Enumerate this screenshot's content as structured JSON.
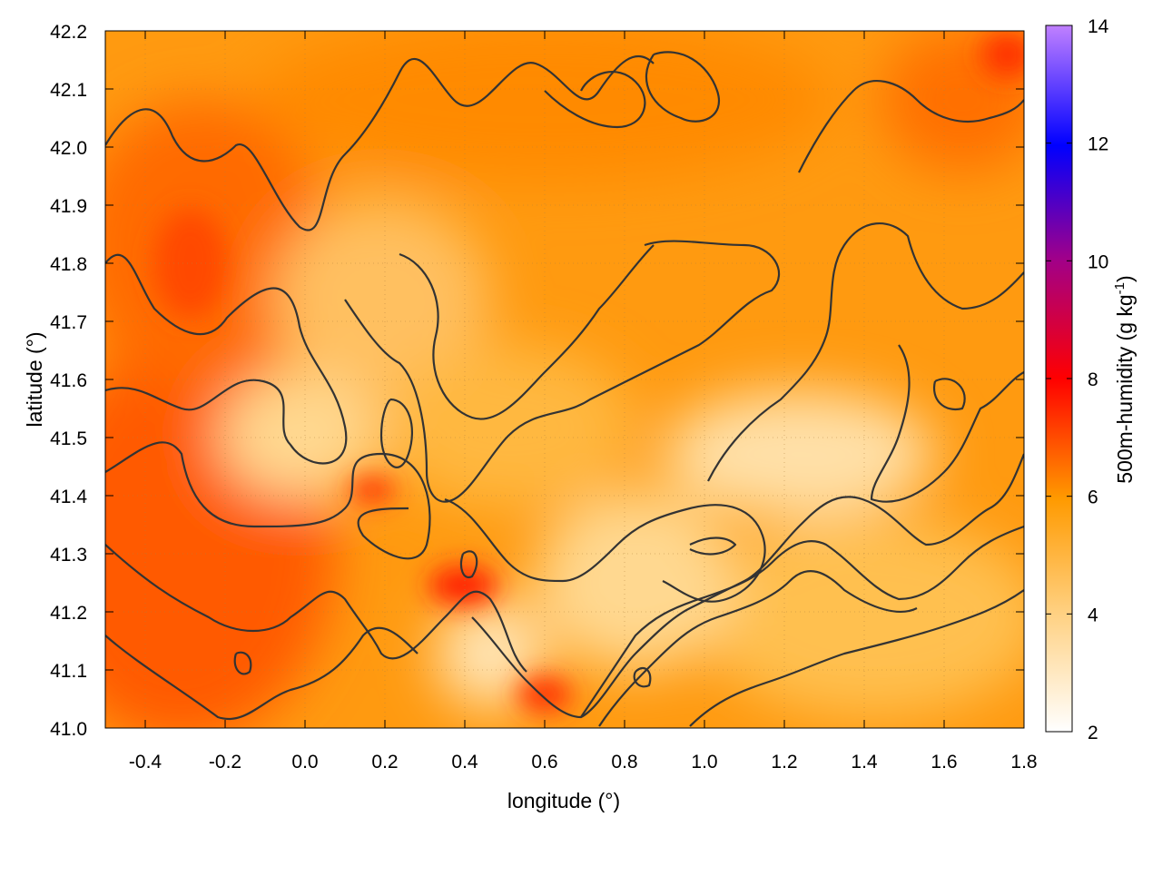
{
  "chart_data": {
    "type": "heatmap",
    "title": "",
    "xlabel": "longitude (°)",
    "ylabel": "latitude (°)",
    "colorbar_label": "500m-humidity (g kg",
    "colorbar_label_sup": "-1",
    "colorbar_label_end": ")",
    "xlim": [
      -0.5,
      1.8
    ],
    "ylim": [
      41.0,
      42.2
    ],
    "x_ticks": [
      "-0.4",
      "-0.2",
      "0.0",
      "0.2",
      "0.4",
      "0.6",
      "0.8",
      "1.0",
      "1.2",
      "1.4",
      "1.6",
      "1.8"
    ],
    "x_tick_values": [
      -0.4,
      -0.2,
      0.0,
      0.2,
      0.4,
      0.6,
      0.8,
      1.0,
      1.2,
      1.4,
      1.6,
      1.8
    ],
    "y_ticks": [
      "41.0",
      "41.1",
      "41.2",
      "41.3",
      "41.4",
      "41.5",
      "41.6",
      "41.7",
      "41.8",
      "41.9",
      "42.0",
      "42.1",
      "42.2"
    ],
    "y_tick_values": [
      41.0,
      41.1,
      41.2,
      41.3,
      41.4,
      41.5,
      41.6,
      41.7,
      41.8,
      41.9,
      42.0,
      42.1,
      42.2
    ],
    "colorbar_range": [
      2,
      14
    ],
    "colorbar_ticks": [
      "2",
      "4",
      "6",
      "8",
      "10",
      "12",
      "14"
    ],
    "colorbar_tick_values": [
      2,
      4,
      6,
      8,
      10,
      12,
      14
    ],
    "colormap": [
      "#ffffff",
      "#ffa500",
      "#ff0000",
      "#0000ff",
      "#c080ff"
    ],
    "grid": true,
    "contours": true,
    "field_regions": [
      {
        "region": "west",
        "lon": [
          -0.5,
          0.0
        ],
        "lat": [
          41.0,
          42.2
        ],
        "value_approx": 6.5
      },
      {
        "region": "center-north",
        "lon": [
          0.0,
          1.2
        ],
        "lat": [
          41.6,
          42.2
        ],
        "value_approx": 5.5
      },
      {
        "region": "center",
        "lon": [
          0.1,
          0.6
        ],
        "lat": [
          41.1,
          41.6
        ],
        "value_approx": 4.0
      },
      {
        "region": "southeast",
        "lon": [
          0.9,
          1.8
        ],
        "lat": [
          41.0,
          41.5
        ],
        "value_approx": 4.0
      },
      {
        "region": "northeast",
        "lon": [
          1.2,
          1.8
        ],
        "lat": [
          41.5,
          42.2
        ],
        "value_approx": 5.5
      },
      {
        "region": "local max near 0.4,41.25",
        "lon": [
          0.35,
          0.45
        ],
        "lat": [
          41.2,
          41.3
        ],
        "value_approx": 7.5
      }
    ]
  }
}
